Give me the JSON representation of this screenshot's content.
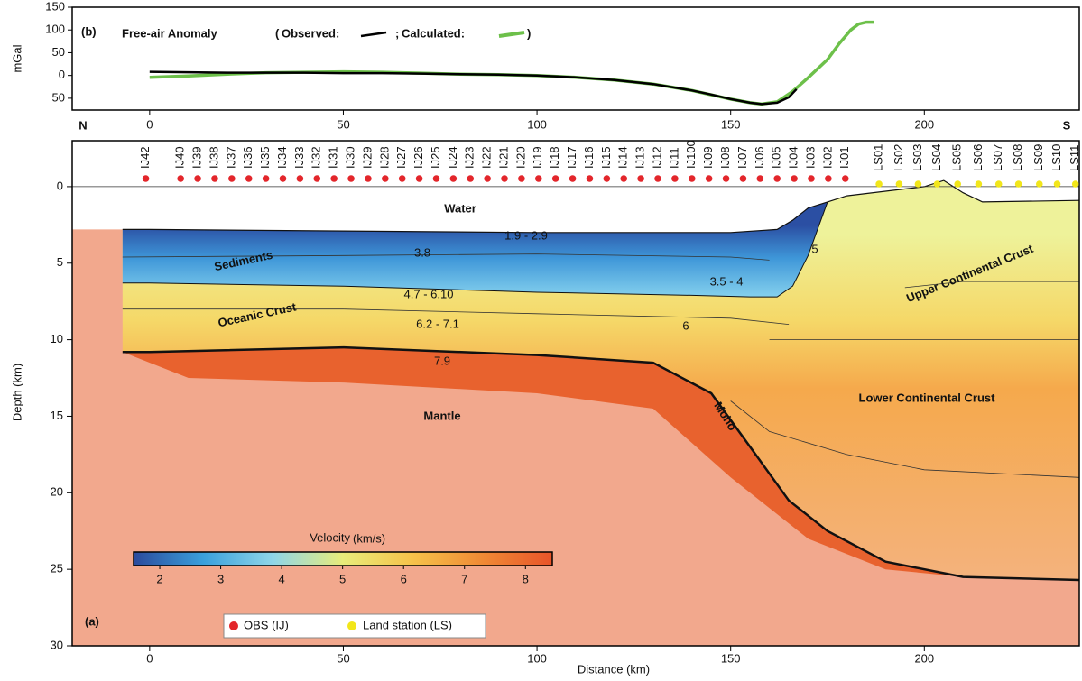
{
  "chart_data": [
    {
      "type": "line",
      "panel_label": "(b)",
      "title": "Free-air  Anomaly",
      "legend_open": "(",
      "legend_sep": ";",
      "legend_close": ")",
      "ylabel": "mGal",
      "xlim": [
        -20,
        240
      ],
      "xticks": [
        0,
        50,
        100,
        150,
        200
      ],
      "ylim": [
        -76,
        150
      ],
      "yticks": [
        {
          "value": -50,
          "label": "50"
        },
        0,
        50,
        100,
        150
      ],
      "series": [
        {
          "name": "Observed:",
          "color": "#000000",
          "x": [
            0,
            10,
            20,
            30,
            40,
            50,
            60,
            70,
            80,
            90,
            100,
            110,
            120,
            130,
            140,
            145,
            150,
            155,
            158,
            162,
            165,
            167
          ],
          "values": [
            8,
            7,
            6,
            6,
            6,
            5,
            5,
            4,
            3,
            2,
            0,
            -4,
            -10,
            -19,
            -33,
            -42,
            -52,
            -60,
            -63,
            -60,
            -48,
            -30
          ]
        },
        {
          "name": "Calculated:",
          "color": "#6dc04a",
          "x": [
            0,
            10,
            20,
            30,
            40,
            50,
            60,
            70,
            80,
            90,
            100,
            110,
            120,
            130,
            140,
            150,
            155,
            158,
            162,
            166,
            170,
            175,
            178,
            181,
            183,
            185,
            187
          ],
          "values": [
            -4,
            -1,
            3,
            6,
            7,
            8,
            7,
            5,
            3,
            2,
            0,
            -4,
            -10,
            -19,
            -33,
            -52,
            -60,
            -63,
            -58,
            -35,
            -5,
            35,
            70,
            100,
            113,
            117,
            117
          ]
        }
      ]
    },
    {
      "type": "section",
      "panel_label": "(a)",
      "left_label": "N",
      "right_label": "S",
      "xlabel": "Distance (km)",
      "ylabel": "Depth (km)",
      "xlim": [
        -20,
        240
      ],
      "xticks": [
        0,
        50,
        100,
        150,
        200
      ],
      "ylim": [
        -3,
        30
      ],
      "yticks": [
        0,
        5,
        10,
        15,
        20,
        25,
        30
      ],
      "seafloor": {
        "x": [
          -7,
          0,
          50,
          100,
          150,
          162,
          166,
          170,
          175,
          180,
          190,
          200,
          205,
          210,
          215,
          240
        ],
        "depth": [
          2.8,
          2.8,
          2.9,
          3.0,
          3.0,
          2.8,
          2.2,
          1.4,
          1.0,
          0.6,
          0.3,
          0.0,
          -0.4,
          0.4,
          1.0,
          0.9
        ]
      },
      "sediment_base": {
        "x": [
          -7,
          0,
          50,
          100,
          140,
          155,
          162,
          166,
          170,
          175
        ],
        "depth": [
          6.3,
          6.3,
          6.5,
          6.9,
          7.1,
          7.2,
          7.2,
          6.5,
          4.5,
          1.0
        ]
      },
      "moho": {
        "x": [
          -7,
          0,
          50,
          100,
          130,
          145,
          155,
          165,
          175,
          190,
          210,
          240
        ],
        "depth": [
          10.8,
          10.8,
          10.5,
          11.0,
          11.5,
          13.5,
          17.0,
          20.5,
          22.5,
          24.5,
          25.5,
          25.7
        ]
      },
      "mantle_lid": {
        "x": [
          -7,
          10,
          50,
          100,
          130,
          150,
          170,
          190,
          210
        ],
        "depth": [
          10.8,
          12.5,
          12.8,
          13.5,
          14.5,
          19.0,
          23.0,
          25.0,
          25.5
        ]
      },
      "isolines": [
        {
          "x": [
            -20,
            240
          ],
          "depth": [
            0,
            0
          ]
        },
        {
          "x": [
            -7,
            50,
            100,
            150,
            160
          ],
          "depth": [
            4.6,
            4.5,
            4.4,
            4.6,
            4.8
          ]
        },
        {
          "x": [
            -7,
            50,
            100,
            150,
            165
          ],
          "depth": [
            8.0,
            8.0,
            8.3,
            8.6,
            9.0
          ]
        },
        {
          "x": [
            160,
            180,
            200,
            240
          ],
          "depth": [
            10.0,
            10.0,
            10.0,
            10.0
          ]
        },
        {
          "x": [
            195,
            210,
            240
          ],
          "depth": [
            6.6,
            6.2,
            6.2
          ]
        },
        {
          "x": [
            150,
            160,
            180,
            200,
            240
          ],
          "depth": [
            14.0,
            16.0,
            17.5,
            18.5,
            19.0
          ]
        }
      ],
      "annotations": [
        "Water",
        "Sediments",
        "Oceanic Crust",
        "Mantle",
        "Moho",
        "Upper Continental Crust",
        "Lower Continental Crust",
        "1.9 - 2.9",
        "3.8",
        "3.5 - 4",
        "5",
        "4.7 - 6.10",
        "6.2 - 7.1",
        "6",
        "7.9"
      ],
      "stations": [
        {
          "name": "OBS (IJ)",
          "color": "#e3262b",
          "labels": [
            "IJ42",
            "IJ40",
            "IJ39",
            "IJ38",
            "IJ37",
            "IJ36",
            "IJ35",
            "IJ34",
            "IJ33",
            "IJ32",
            "IJ31",
            "IJ30",
            "IJ29",
            "IJ28",
            "IJ27",
            "IJ26",
            "IJ25",
            "IJ24",
            "IJ23",
            "IJ22",
            "IJ21",
            "IJ20",
            "IJ19",
            "IJ18",
            "IJ17",
            "IJ16",
            "IJ15",
            "IJ14",
            "IJ13",
            "IJ12",
            "IJ11",
            "IJ100",
            "IJ09",
            "IJ08",
            "IJ07",
            "IJ06",
            "IJ05",
            "IJ04",
            "IJ03",
            "IJ02",
            "IJ01"
          ],
          "x": [
            -1,
            8,
            12.4,
            16.8,
            21.2,
            25.6,
            30,
            34.4,
            38.8,
            43.2,
            47.6,
            52,
            56.4,
            60.8,
            65.2,
            69.6,
            74,
            78.4,
            82.8,
            87.2,
            91.6,
            96,
            100.4,
            104.8,
            109.2,
            113.6,
            118,
            122.4,
            126.8,
            131.2,
            135.6,
            140,
            144.4,
            148.8,
            153.2,
            157.6,
            162,
            166.4,
            170.8,
            175.2,
            179.6
          ]
        },
        {
          "name": "Land station (LS)",
          "color": "#f2e61a",
          "labels": [
            "LS01",
            "LS02",
            "LS03",
            "LS04",
            "LS05",
            "LS06",
            "LS07",
            "LS08",
            "LS09",
            "LS10",
            "LS11"
          ],
          "x": [
            188.3,
            193.5,
            198.4,
            203.3,
            208.6,
            214,
            219.2,
            224.3,
            229.7,
            234.3,
            239
          ]
        }
      ],
      "colorbar": {
        "label": "Velocity",
        "unit": "(km/s)",
        "lim": [
          1.57,
          8.44
        ],
        "ticks": [
          2,
          3,
          4,
          5,
          6,
          7,
          8
        ],
        "colors": [
          "#2b4a9c",
          "#3aa0dc",
          "#8fd6e8",
          "#e8ec7a",
          "#f6c24a",
          "#f08a35",
          "#e8542a"
        ]
      }
    }
  ]
}
